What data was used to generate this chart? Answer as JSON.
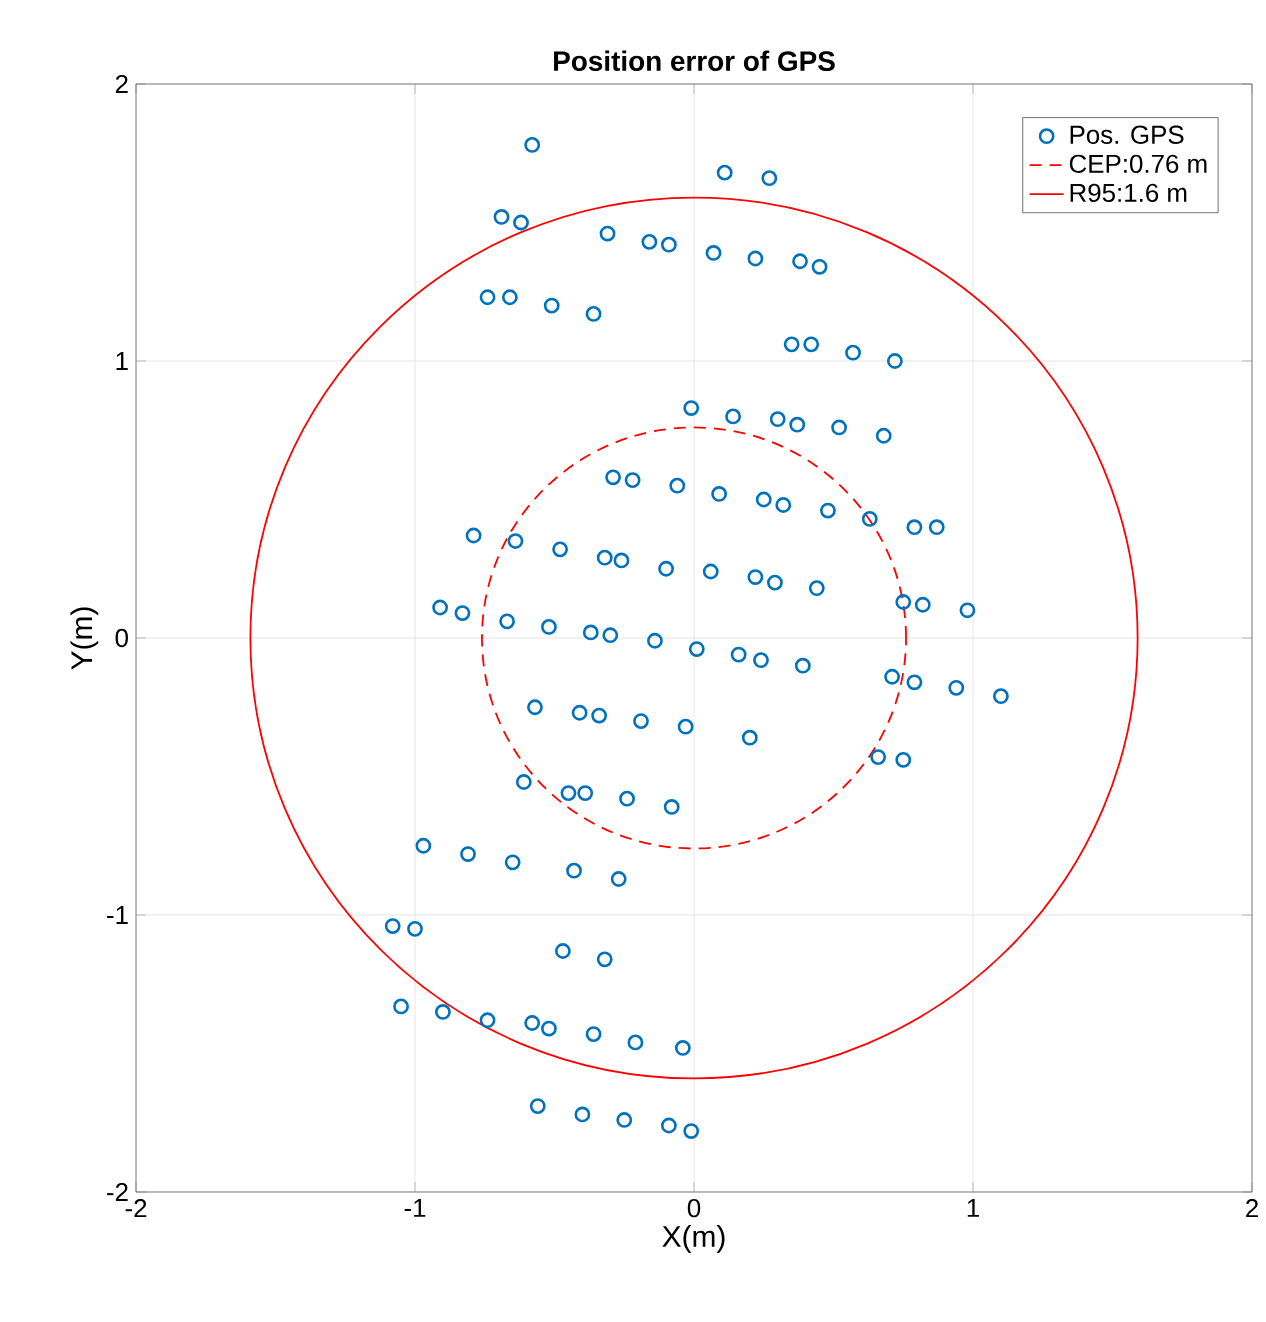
{
  "chart_data": {
    "type": "scatter",
    "title": "Position error of GPS",
    "xlabel": "X(m)",
    "ylabel": "Y(m)",
    "xlim": [
      -2,
      2
    ],
    "ylim": [
      -2,
      2
    ],
    "xticks": [
      -2,
      -1,
      0,
      1,
      2
    ],
    "yticks": [
      -2,
      -1,
      0,
      1,
      2
    ],
    "grid": true,
    "legend": "top right",
    "series": [
      {
        "name": "Pos. GPS",
        "marker": "circle",
        "color": "#0072bd",
        "x": [
          -0.58,
          -0.69,
          -0.62,
          -0.31,
          -0.16,
          -0.09,
          0.07,
          0.22,
          0.38,
          0.45,
          0.11,
          0.27,
          -0.74,
          -0.66,
          -0.51,
          -0.36,
          0.35,
          0.42,
          0.57,
          0.72,
          -0.01,
          0.14,
          0.3,
          0.37,
          0.52,
          0.68,
          -0.29,
          -0.22,
          -0.06,
          0.09,
          0.25,
          0.32,
          0.48,
          0.63,
          0.79,
          0.87,
          -0.79,
          -0.64,
          -0.48,
          -0.32,
          -0.26,
          -0.1,
          0.06,
          0.22,
          0.29,
          0.44,
          -0.91,
          -0.83,
          -0.67,
          -0.52,
          -0.37,
          -0.3,
          -0.14,
          0.01,
          0.16,
          0.24,
          0.39,
          0.75,
          0.82,
          0.98,
          -0.57,
          -0.41,
          -0.34,
          -0.19,
          -0.03,
          0.2,
          0.71,
          0.79,
          0.94,
          1.1,
          -0.61,
          -0.45,
          -0.39,
          -0.24,
          -0.08,
          0.66,
          0.75,
          -0.97,
          -0.81,
          -0.65,
          -0.43,
          -0.27,
          -1.08,
          -1.0,
          -0.47,
          -0.32,
          -1.05,
          -0.9,
          -0.74,
          -0.58,
          -0.52,
          -0.36,
          -0.21,
          -0.04,
          -0.56,
          -0.4,
          -0.25,
          -0.09,
          -0.01
        ],
        "values": [
          1.78,
          1.52,
          1.5,
          1.46,
          1.43,
          1.42,
          1.39,
          1.37,
          1.36,
          1.34,
          1.68,
          1.66,
          1.23,
          1.23,
          1.2,
          1.17,
          1.06,
          1.06,
          1.03,
          1.0,
          0.83,
          0.8,
          0.79,
          0.77,
          0.76,
          0.73,
          0.58,
          0.57,
          0.55,
          0.52,
          0.5,
          0.48,
          0.46,
          0.43,
          0.4,
          0.4,
          0.37,
          0.35,
          0.32,
          0.29,
          0.28,
          0.25,
          0.24,
          0.22,
          0.2,
          0.18,
          0.11,
          0.09,
          0.06,
          0.04,
          0.02,
          0.01,
          -0.01,
          -0.04,
          -0.06,
          -0.08,
          -0.1,
          0.13,
          0.12,
          0.1,
          -0.25,
          -0.27,
          -0.28,
          -0.3,
          -0.32,
          -0.36,
          -0.14,
          -0.16,
          -0.18,
          -0.21,
          -0.52,
          -0.56,
          -0.56,
          -0.58,
          -0.61,
          -0.43,
          -0.44,
          -0.75,
          -0.78,
          -0.81,
          -0.84,
          -0.87,
          -1.04,
          -1.05,
          -1.13,
          -1.16,
          -1.33,
          -1.35,
          -1.38,
          -1.39,
          -1.41,
          -1.43,
          -1.46,
          -1.48,
          -1.69,
          -1.72,
          -1.74,
          -1.76,
          -1.78
        ]
      },
      {
        "name": "CEP:0.76 m",
        "type": "other",
        "line_style": "dashed",
        "color": "#ff0000"
      },
      {
        "name": "R95:1.6 m",
        "type": "other",
        "line_style": "solid",
        "color": "#ff0000"
      }
    ]
  }
}
